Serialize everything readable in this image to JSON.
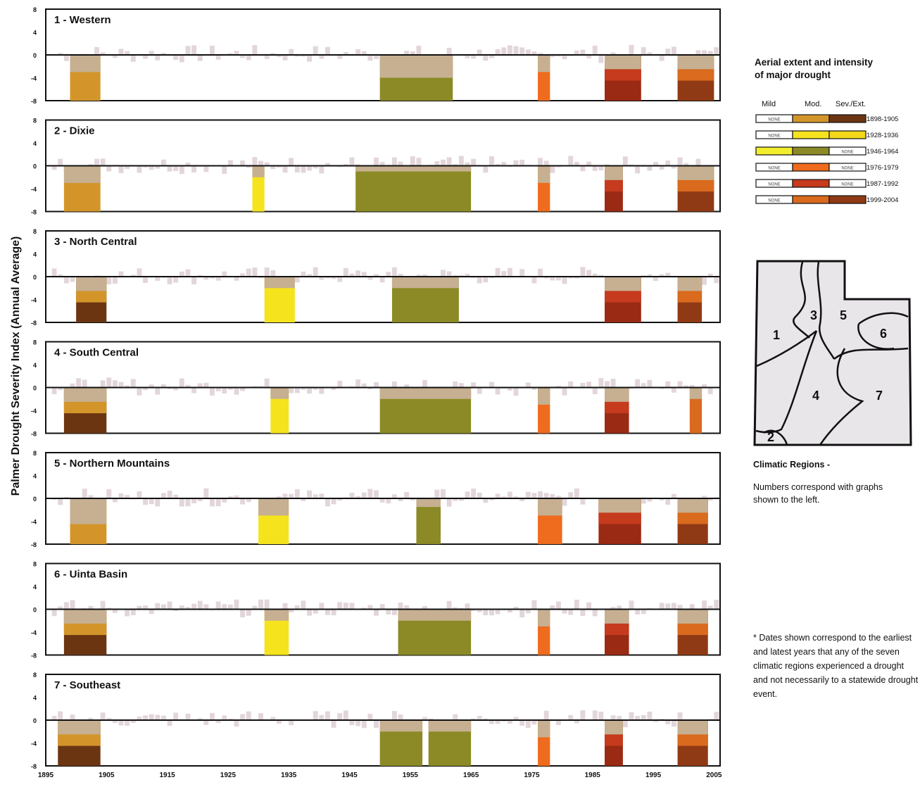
{
  "chart_data": {
    "type": "bar",
    "ylabel": "Palmer Drought Severity Index (Annual Average)",
    "ylim": [
      -8,
      8
    ],
    "yticks": [
      "8",
      "4",
      "0",
      "-4",
      "-8"
    ],
    "xlim": [
      1895,
      2006
    ],
    "xticks": [
      1895,
      1905,
      1915,
      1925,
      1935,
      1945,
      1955,
      1965,
      1975,
      1985,
      1995,
      2005
    ],
    "panels": [
      {
        "title": "1 - Western",
        "droughts": [
          {
            "period": "1898-1905",
            "start": 1899,
            "end": 1903,
            "mild": -0.5,
            "moderate": -3.0,
            "severe_extreme": null
          },
          {
            "period": "1946-1964",
            "start": 1950,
            "end": 1961,
            "mild": -0.5,
            "moderate": -4.0,
            "severe_extreme": null
          },
          {
            "period": "1976-1979",
            "start": 1976,
            "end": 1977,
            "mild": -0.5,
            "moderate": -3.0,
            "severe_extreme": null
          },
          {
            "period": "1987-1992",
            "start": 1987,
            "end": 1992,
            "mild": -0.5,
            "moderate": -2.5,
            "severe_extreme": -4.5
          },
          {
            "period": "1999-2004",
            "start": 1999,
            "end": 2004,
            "mild": -0.5,
            "moderate": -2.5,
            "severe_extreme": -4.5
          }
        ]
      },
      {
        "title": "2 - Dixie",
        "droughts": [
          {
            "period": "1898-1905",
            "start": 1898,
            "end": 1903,
            "mild": -0.5,
            "moderate": -3.0,
            "severe_extreme": null
          },
          {
            "period": "1928-1936",
            "start": 1929,
            "end": 1930,
            "mild": -0.5,
            "moderate": -2.0,
            "severe_extreme": null
          },
          {
            "period": "1946-1964",
            "start": 1946,
            "end": 1964,
            "mild": -0.5,
            "moderate": -1.0,
            "severe_extreme": null
          },
          {
            "period": "1976-1979",
            "start": 1976,
            "end": 1977,
            "mild": -0.5,
            "moderate": -3.0,
            "severe_extreme": null
          },
          {
            "period": "1987-1992",
            "start": 1987,
            "end": 1989,
            "mild": -0.5,
            "moderate": -2.5,
            "severe_extreme": -4.5
          },
          {
            "period": "1999-2004",
            "start": 1999,
            "end": 2004,
            "mild": -0.5,
            "moderate": -2.5,
            "severe_extreme": -4.5
          }
        ]
      },
      {
        "title": "3 - North Central",
        "droughts": [
          {
            "period": "1898-1905",
            "start": 1900,
            "end": 1904,
            "mild": -0.5,
            "moderate": -2.5,
            "severe_extreme": -4.5
          },
          {
            "period": "1928-1936",
            "start": 1931,
            "end": 1935,
            "mild": -0.5,
            "moderate": -2.0,
            "severe_extreme": null
          },
          {
            "period": "1946-1964",
            "start": 1952,
            "end": 1962,
            "mild": -0.5,
            "moderate": -2.0,
            "severe_extreme": null
          },
          {
            "period": "1987-1992",
            "start": 1987,
            "end": 1992,
            "mild": -0.5,
            "moderate": -2.5,
            "severe_extreme": -4.5
          },
          {
            "period": "1999-2004",
            "start": 1999,
            "end": 2002,
            "mild": -0.5,
            "moderate": -2.5,
            "severe_extreme": -4.5
          }
        ]
      },
      {
        "title": "4 - South Central",
        "droughts": [
          {
            "period": "1898-1905",
            "start": 1898,
            "end": 1904,
            "mild": -0.5,
            "moderate": -2.5,
            "severe_extreme": -4.5
          },
          {
            "period": "1928-1936",
            "start": 1932,
            "end": 1934,
            "mild": -0.5,
            "moderate": -2.0,
            "severe_extreme": null
          },
          {
            "period": "1946-1964",
            "start": 1950,
            "end": 1964,
            "mild": -0.5,
            "moderate": -2.0,
            "severe_extreme": null
          },
          {
            "period": "1976-1979",
            "start": 1976,
            "end": 1977,
            "mild": -0.5,
            "moderate": -3.0,
            "severe_extreme": null
          },
          {
            "period": "1987-1992",
            "start": 1987,
            "end": 1990,
            "mild": -0.5,
            "moderate": -2.5,
            "severe_extreme": -4.5
          },
          {
            "period": "1999-2004",
            "start": 2001,
            "end": 2002,
            "mild": -0.5,
            "moderate": -2.0,
            "severe_extreme": null
          }
        ]
      },
      {
        "title": "5 - Northern Mountains",
        "droughts": [
          {
            "period": "1898-1905",
            "start": 1899,
            "end": 1904,
            "mild": -0.5,
            "moderate": -4.5,
            "severe_extreme": null
          },
          {
            "period": "1928-1936",
            "start": 1930,
            "end": 1934,
            "mild": -0.5,
            "moderate": -3.0,
            "severe_extreme": null
          },
          {
            "period": "1946-1964",
            "start": 1956,
            "end": 1959,
            "mild": -0.5,
            "moderate": -1.5,
            "severe_extreme": null
          },
          {
            "period": "1976-1979",
            "start": 1976,
            "end": 1979,
            "mild": -0.5,
            "moderate": -3.0,
            "severe_extreme": null
          },
          {
            "period": "1987-1992",
            "start": 1986,
            "end": 1992,
            "mild": -0.5,
            "moderate": -2.5,
            "severe_extreme": -4.5
          },
          {
            "period": "1999-2004",
            "start": 1999,
            "end": 2003,
            "mild": -0.5,
            "moderate": -2.5,
            "severe_extreme": -4.5
          }
        ]
      },
      {
        "title": "6 - Uinta Basin",
        "droughts": [
          {
            "period": "1898-1905",
            "start": 1898,
            "end": 1904,
            "mild": -0.5,
            "moderate": -2.5,
            "severe_extreme": -4.5
          },
          {
            "period": "1928-1936",
            "start": 1931,
            "end": 1934,
            "mild": -0.5,
            "moderate": -2.0,
            "severe_extreme": null
          },
          {
            "period": "1946-1964",
            "start": 1953,
            "end": 1964,
            "mild": -0.5,
            "moderate": -2.0,
            "severe_extreme": null
          },
          {
            "period": "1976-1979",
            "start": 1976,
            "end": 1977,
            "mild": -0.5,
            "moderate": -3.0,
            "severe_extreme": null
          },
          {
            "period": "1987-1992",
            "start": 1987,
            "end": 1990,
            "mild": -0.5,
            "moderate": -2.5,
            "severe_extreme": -4.5
          },
          {
            "period": "1999-2004",
            "start": 1999,
            "end": 2003,
            "mild": -0.5,
            "moderate": -2.5,
            "severe_extreme": -4.5
          }
        ]
      },
      {
        "title": "7 - Southeast",
        "droughts": [
          {
            "period": "1898-1905",
            "start": 1897,
            "end": 1903,
            "mild": -0.5,
            "moderate": -2.5,
            "severe_extreme": -4.5
          },
          {
            "period": "1946-1964",
            "start": 1950,
            "end": 1956,
            "mild": -0.5,
            "moderate": -2.0,
            "severe_extreme": null
          },
          {
            "period": "1946-1964",
            "start": 1958,
            "end": 1964,
            "mild": -0.5,
            "moderate": -2.0,
            "severe_extreme": null
          },
          {
            "period": "1976-1979",
            "start": 1976,
            "end": 1977,
            "mild": -0.5,
            "moderate": -3.0,
            "severe_extreme": null
          },
          {
            "period": "1987-1992",
            "start": 1987,
            "end": 1989,
            "mild": -0.5,
            "moderate": -2.5,
            "severe_extreme": -4.5
          },
          {
            "period": "1999-2004",
            "start": 1999,
            "end": 2003,
            "mild": -0.5,
            "moderate": -2.5,
            "severe_extreme": -4.5
          }
        ]
      }
    ]
  },
  "colors": {
    "mild": "#c6b091",
    "1898-1905": {
      "moderate": "#d3952a",
      "severe_extreme": "#6b3512"
    },
    "1928-1936": {
      "moderate": "#f5e31e",
      "severe_extreme": "#f3d81a"
    },
    "1946-1964": {
      "mild": "#f2ee2e",
      "moderate": "#8b8a26",
      "severe_extreme": "#e9e88e"
    },
    "1976-1979": {
      "moderate": "#ef6b1d",
      "severe_extreme": "#ef6b1d"
    },
    "1987-1992": {
      "moderate": "#c63a1d",
      "severe_extreme": "#9a2a14"
    },
    "1999-2004": {
      "moderate": "#d96a1e",
      "severe_extreme": "#8f3a14"
    },
    "background_bars": "#e2d6da"
  },
  "legend": {
    "title_line1": "Aerial extent and intensity",
    "title_line2": "of major drought",
    "col_mild": "Mild",
    "col_mod": "Mod.",
    "col_sev": "Sev./Ext.",
    "none_label": "NONE",
    "rows": [
      {
        "period": "1898-1905",
        "cells": [
          "none",
          "1898-1905.moderate",
          "1898-1905.severe_extreme"
        ]
      },
      {
        "period": "1928-1936",
        "cells": [
          "none",
          "1928-1936.moderate",
          "1928-1936.severe_extreme"
        ]
      },
      {
        "period": "1946-1964",
        "cells": [
          "1946-1964.mild",
          "1946-1964.moderate",
          "none"
        ]
      },
      {
        "period": "1976-1979",
        "cells": [
          "none",
          "1976-1979.moderate",
          "none"
        ]
      },
      {
        "period": "1987-1992",
        "cells": [
          "none",
          "1987-1992.moderate",
          "none"
        ]
      },
      {
        "period": "1999-2004",
        "cells": [
          "none",
          "1999-2004.moderate",
          "1999-2004.severe_extreme"
        ]
      }
    ]
  },
  "map": {
    "region_numbers": [
      "1",
      "2",
      "3",
      "4",
      "5",
      "6",
      "7"
    ],
    "caption_title": "Climatic Regions -",
    "caption_text": "Numbers correspond with graphs shown to the left."
  },
  "footnote": "* Dates shown correspond to the earliest and latest years that any of the seven climatic regions experienced a drought and not necessarily to a statewide drought event."
}
